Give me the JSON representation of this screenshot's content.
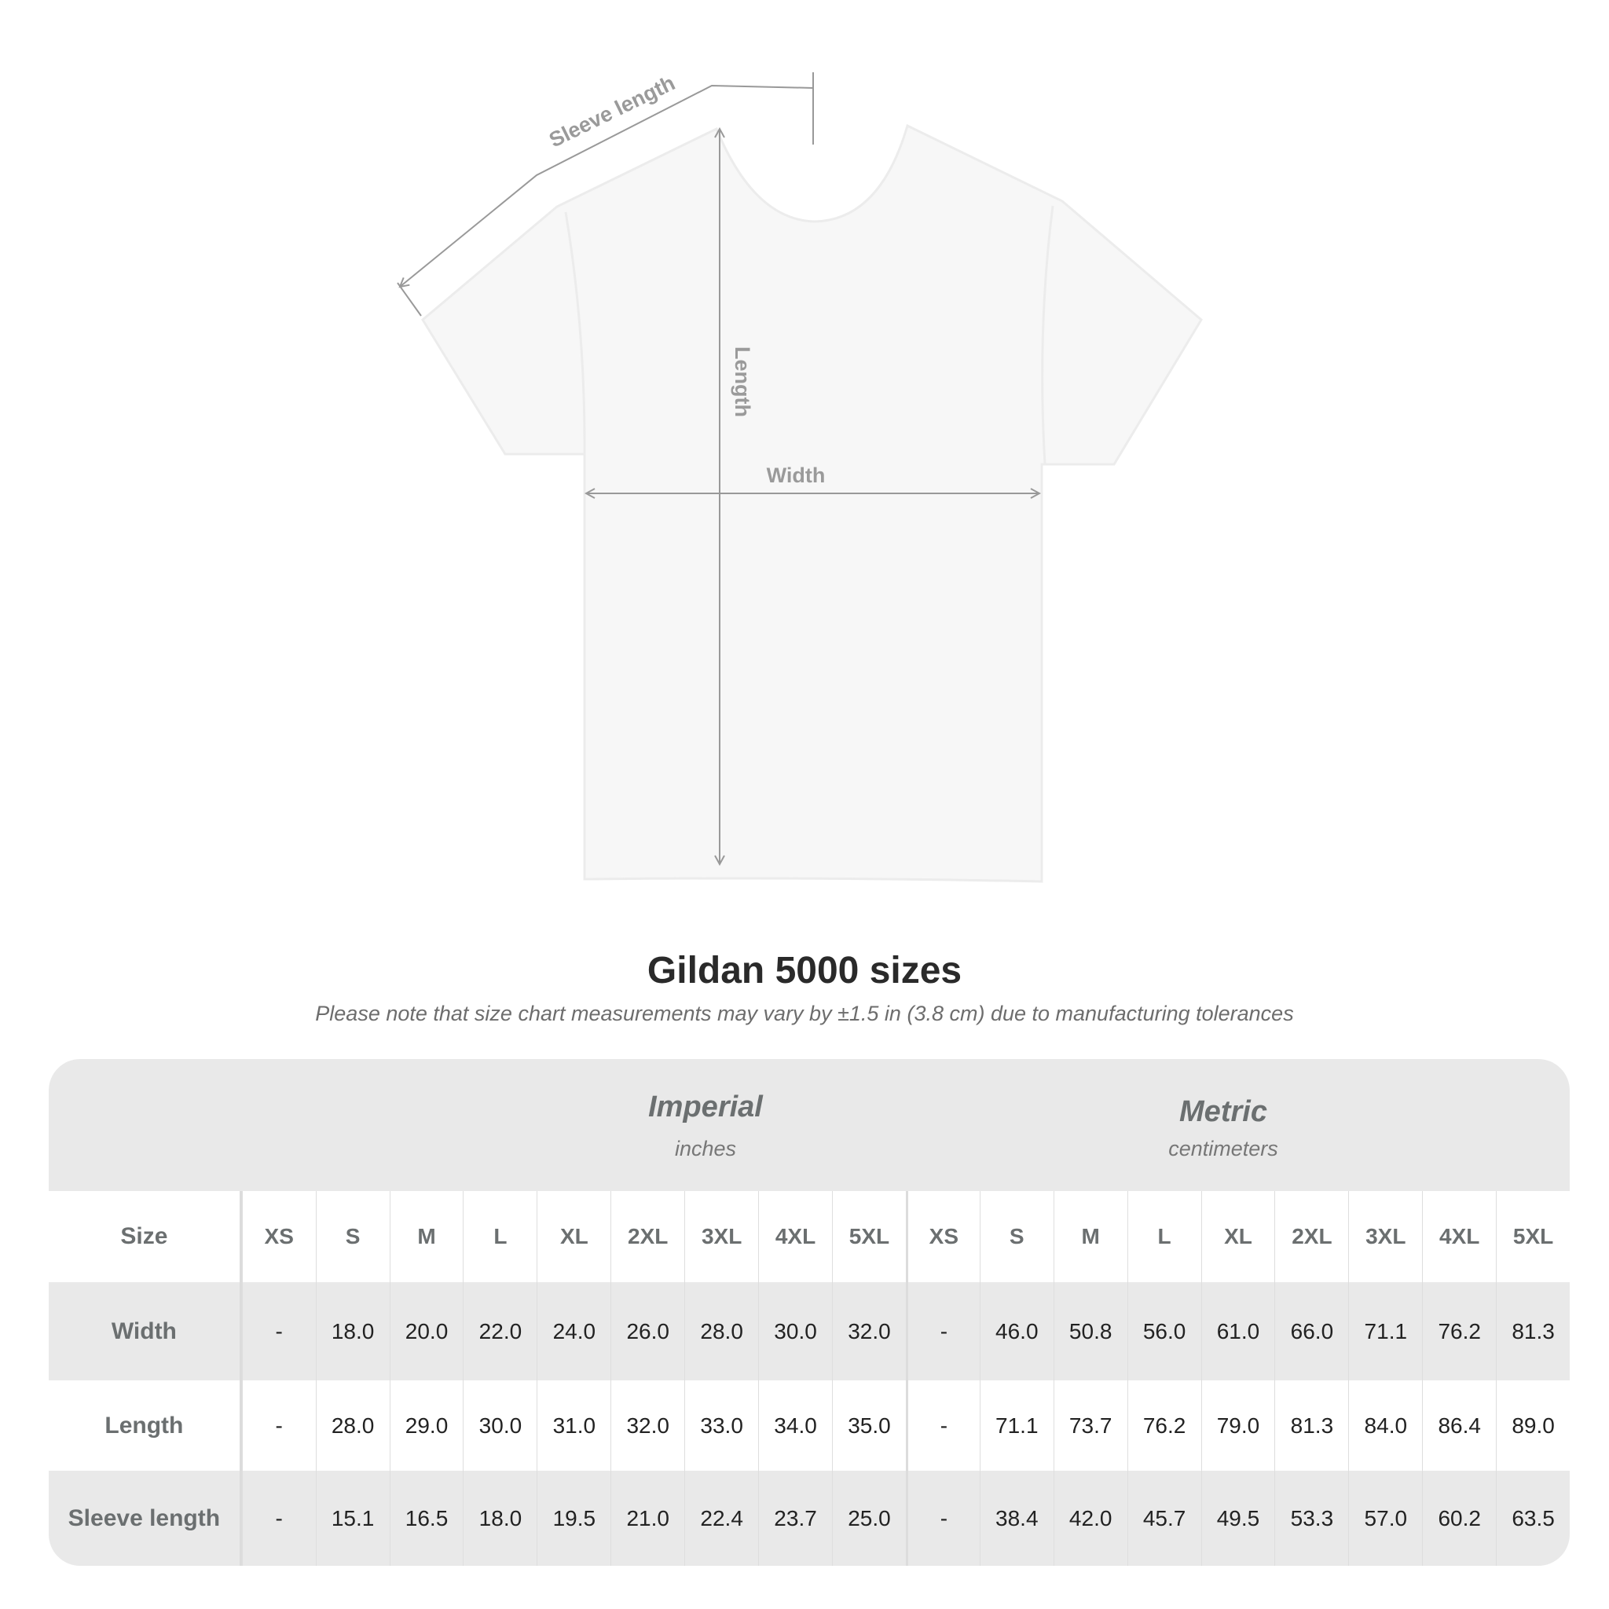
{
  "diagram": {
    "sleeve_label": "Sleeve length",
    "length_label": "Length",
    "width_label": "Width"
  },
  "header": {
    "title": "Gildan 5000 sizes",
    "note": "Please note that size chart measurements may vary by ±1.5 in (3.8 cm) due to manufacturing tolerances"
  },
  "table": {
    "imperial": {
      "name": "Imperial",
      "unit": "inches"
    },
    "metric": {
      "name": "Metric",
      "unit": "centimeters"
    },
    "size_label": "Size",
    "sizes": [
      "XS",
      "S",
      "M",
      "L",
      "XL",
      "2XL",
      "3XL",
      "4XL",
      "5XL"
    ],
    "rows": [
      {
        "label": "Width",
        "imperial": [
          "-",
          "18.0",
          "20.0",
          "22.0",
          "24.0",
          "26.0",
          "28.0",
          "30.0",
          "32.0"
        ],
        "metric": [
          "-",
          "46.0",
          "50.8",
          "56.0",
          "61.0",
          "66.0",
          "71.1",
          "76.2",
          "81.3"
        ]
      },
      {
        "label": "Length",
        "imperial": [
          "-",
          "28.0",
          "29.0",
          "30.0",
          "31.0",
          "32.0",
          "33.0",
          "34.0",
          "35.0"
        ],
        "metric": [
          "-",
          "71.1",
          "73.7",
          "76.2",
          "79.0",
          "81.3",
          "84.0",
          "86.4",
          "89.0"
        ]
      },
      {
        "label": "Sleeve length",
        "imperial": [
          "-",
          "15.1",
          "16.5",
          "18.0",
          "19.5",
          "21.0",
          "22.4",
          "23.7",
          "25.0"
        ],
        "metric": [
          "-",
          "38.4",
          "42.0",
          "45.7",
          "49.5",
          "53.3",
          "57.0",
          "60.2",
          "63.5"
        ]
      }
    ]
  }
}
